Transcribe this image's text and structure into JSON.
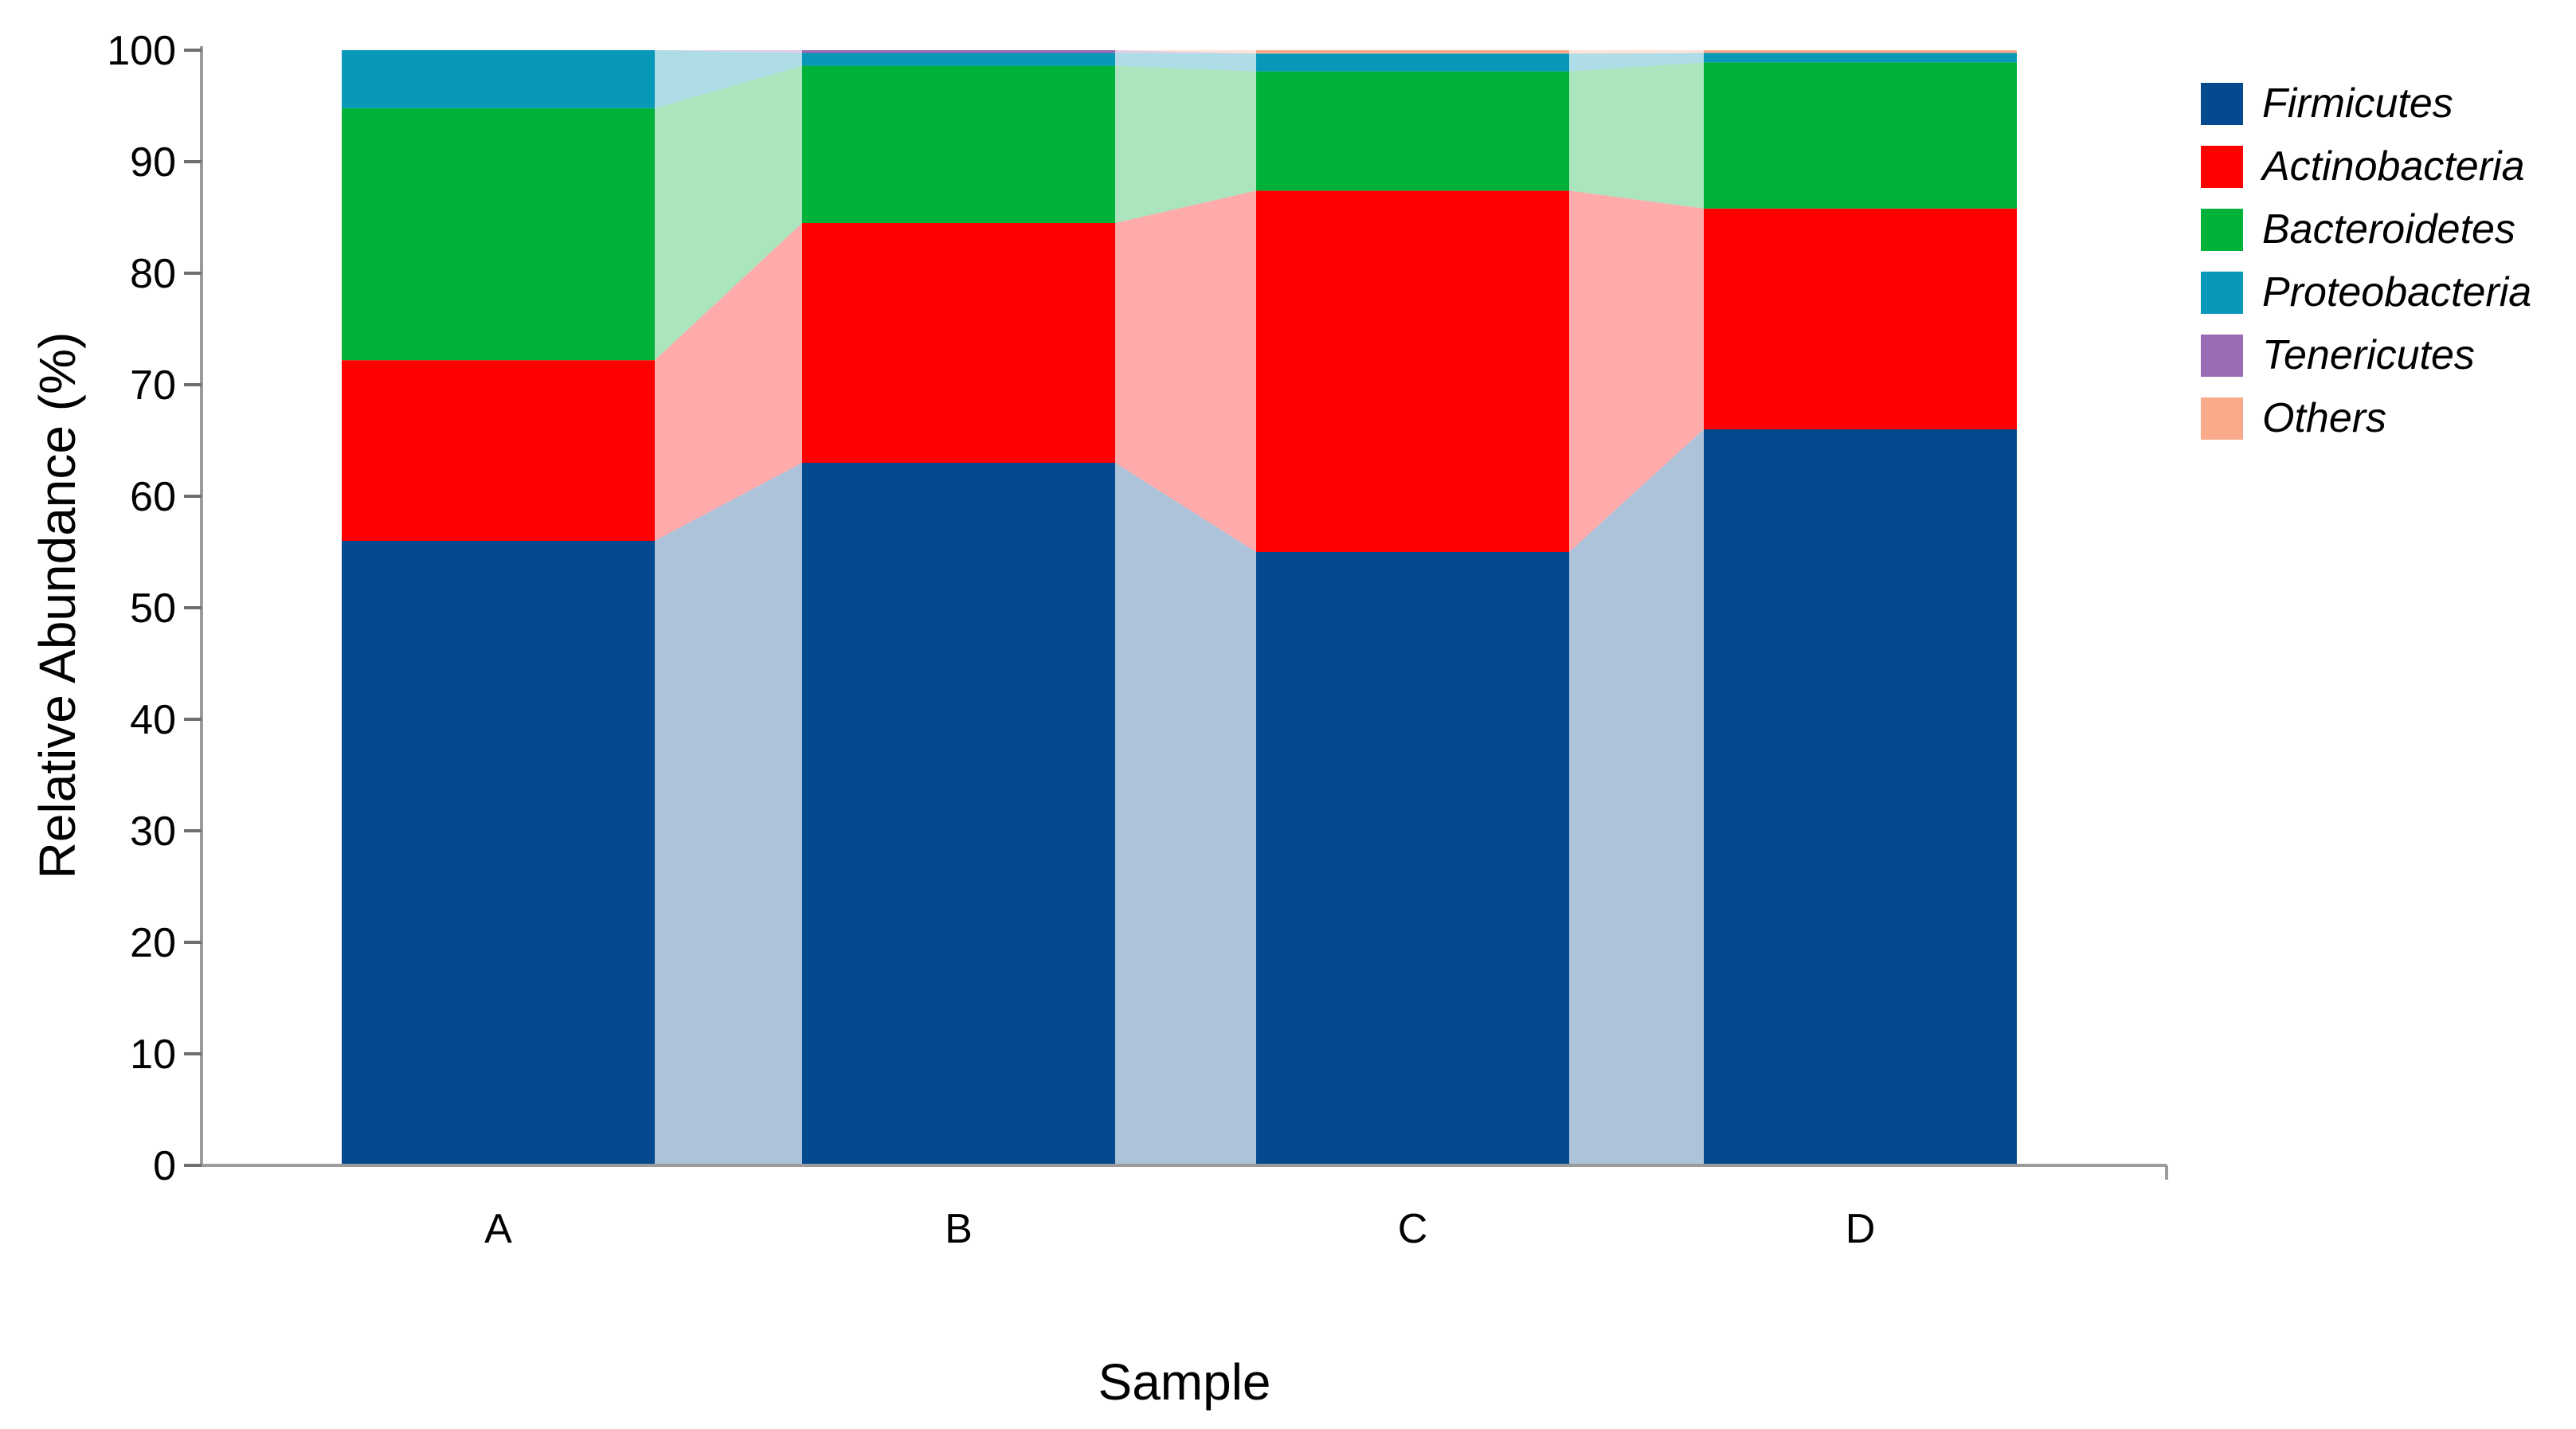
{
  "figure": {
    "xlabel": "Sample",
    "ylabel": "Relative Abundance (%)"
  },
  "chart_data": {
    "type": "bar",
    "subtype": "stacked-percentage-with-flow-ribbons",
    "title": "",
    "xlabel": "Sample",
    "ylabel": "Relative Abundance (%)",
    "categories": [
      "A",
      "B",
      "C",
      "D"
    ],
    "yticks": [
      0,
      10,
      20,
      30,
      40,
      50,
      60,
      70,
      80,
      90,
      100
    ],
    "ylim": [
      0,
      100
    ],
    "grid": false,
    "legend_position": "upper-right",
    "series": [
      {
        "name": "Firmicutes",
        "color": "#05498f",
        "values": [
          56,
          63,
          55,
          66
        ]
      },
      {
        "name": "Actinobacteria",
        "color": "#ff0000",
        "values": [
          16.2,
          21.5,
          32.4,
          19.8
        ]
      },
      {
        "name": "Bacteroidetes",
        "color": "#00b13a",
        "values": [
          22.6,
          14.1,
          10.7,
          13.1
        ]
      },
      {
        "name": "Proteobacteria",
        "color": "#0899b8",
        "values": [
          5.2,
          1.15,
          1.6,
          0.85
        ]
      },
      {
        "name": "Tenericutes",
        "color": "#9a6ab3",
        "values": [
          0,
          0.25,
          0,
          0
        ]
      },
      {
        "name": "Others",
        "color": "#f9aa8b",
        "values": [
          0,
          0,
          0.3,
          0.25
        ]
      }
    ]
  }
}
